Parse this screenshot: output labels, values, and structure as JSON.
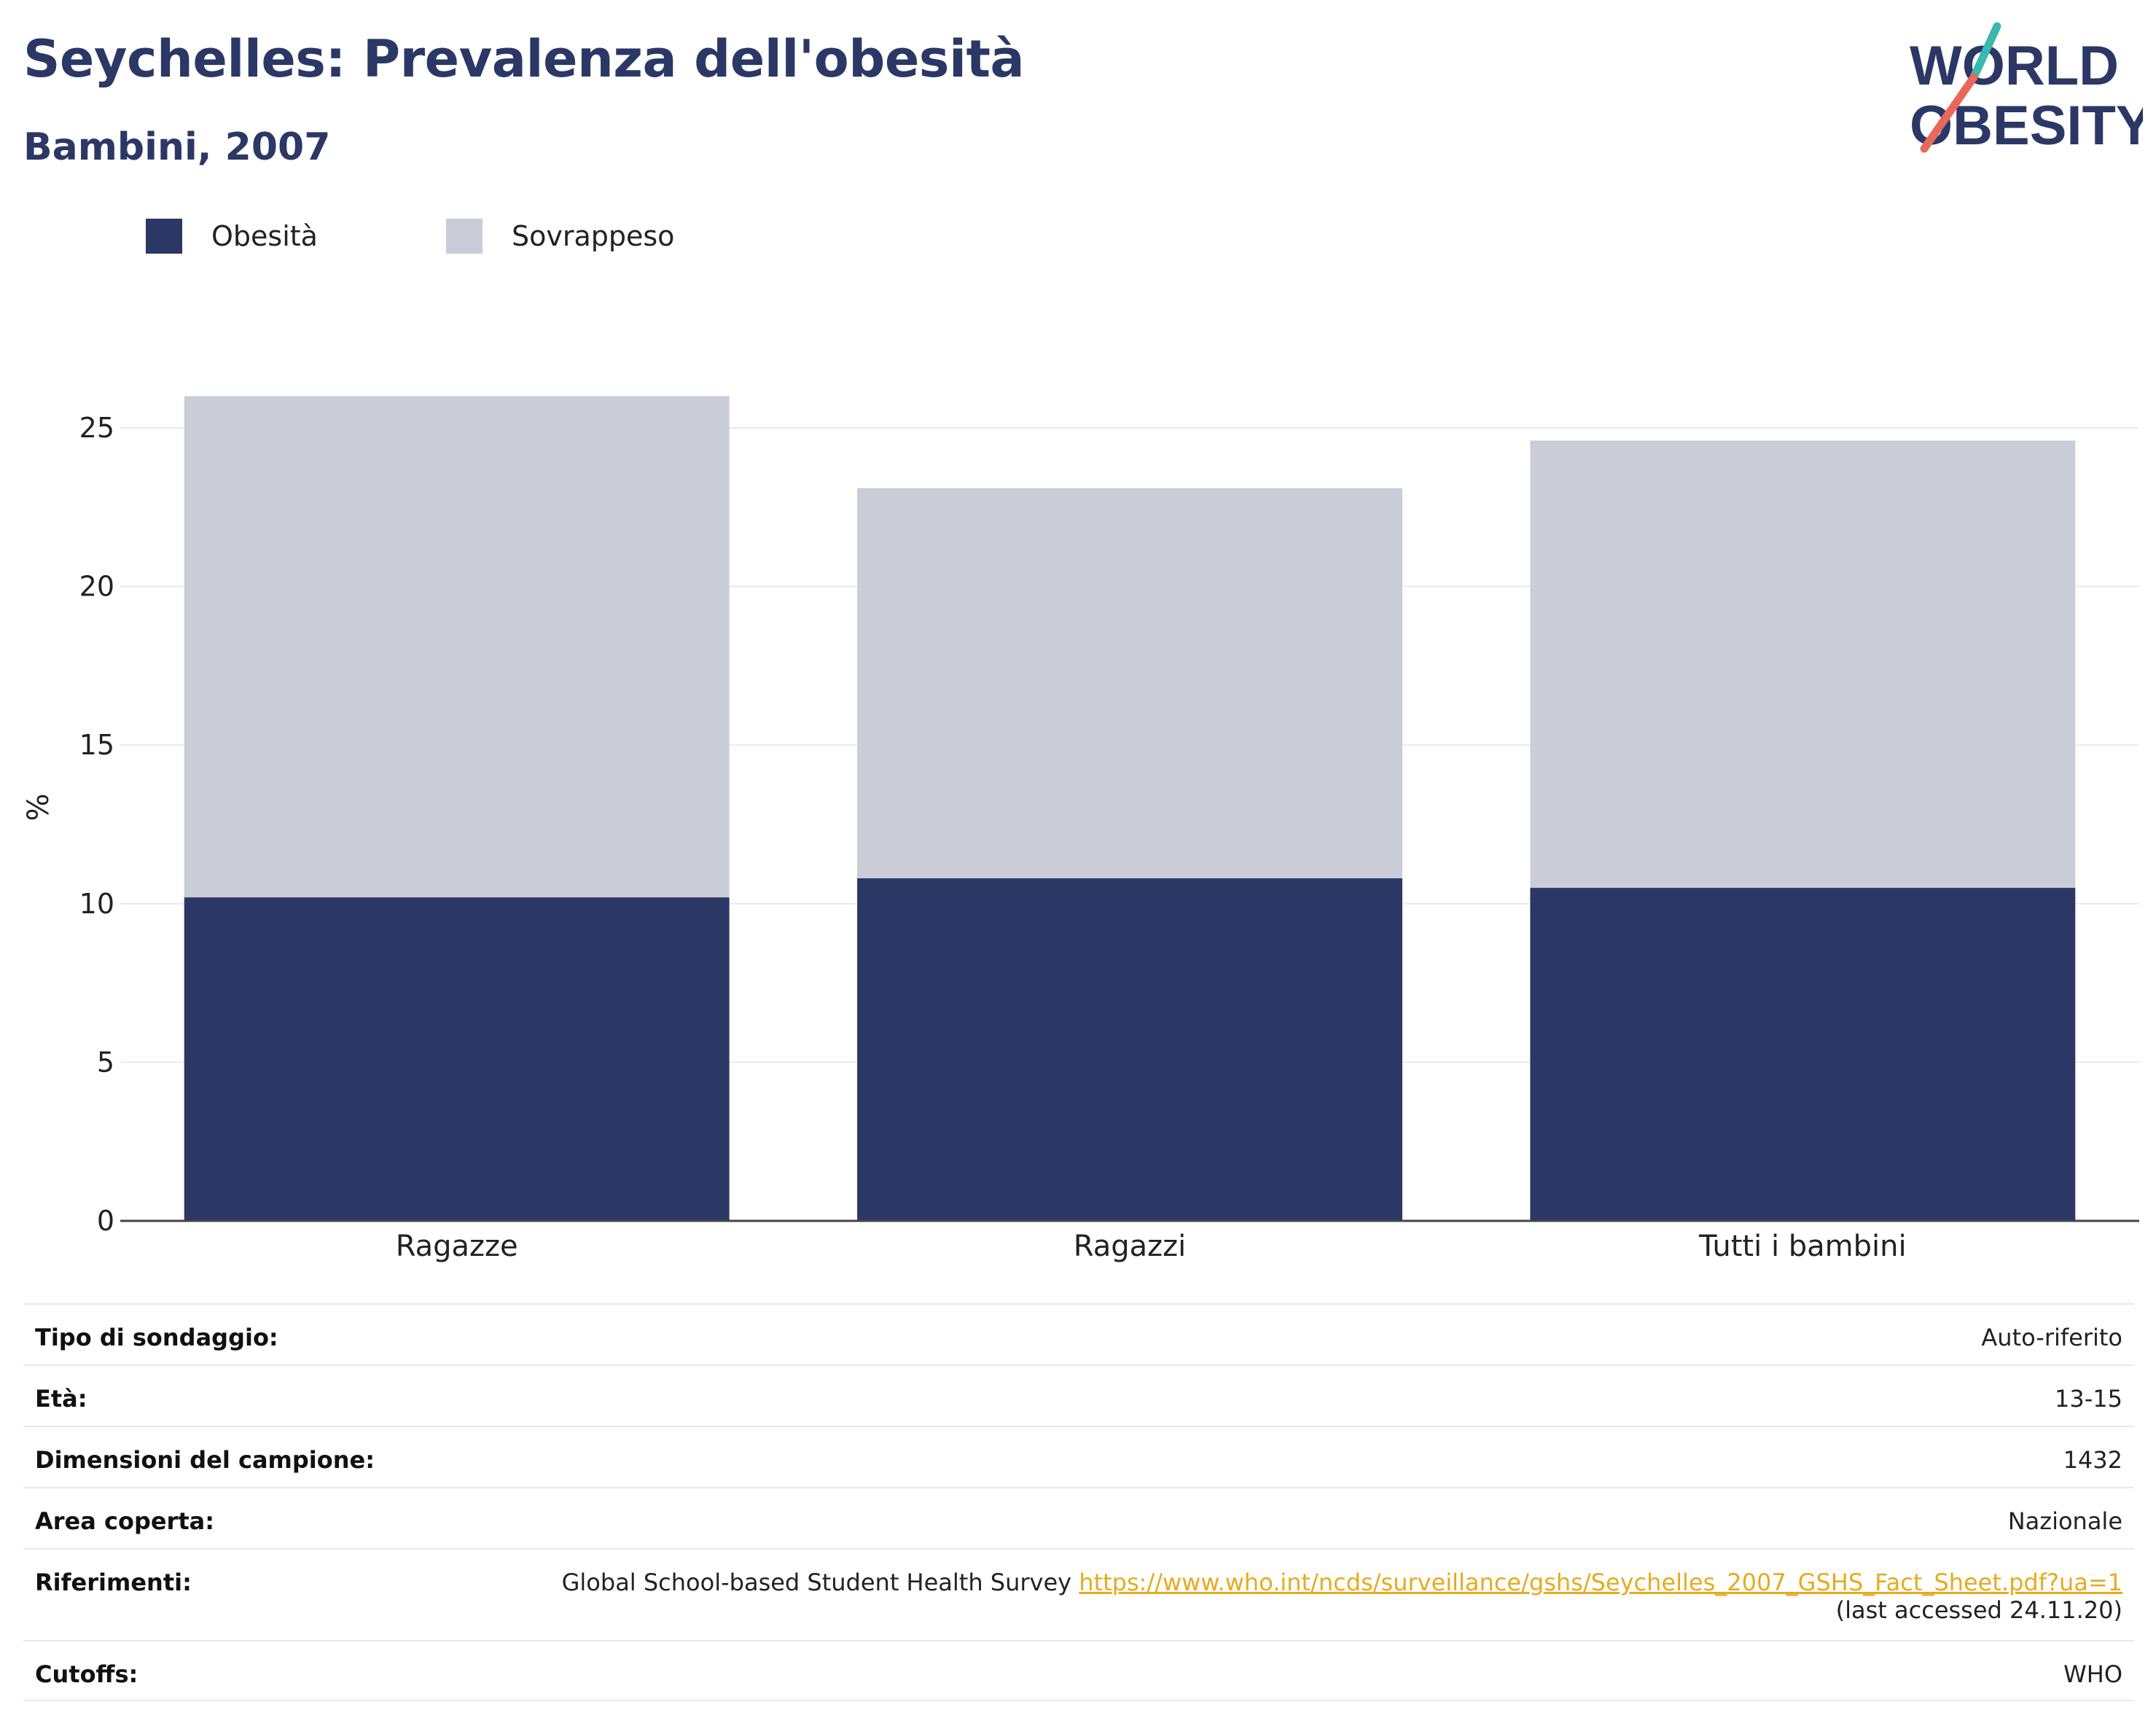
{
  "header": {
    "title": "Seychelles: Prevalenza dell'obesità",
    "subtitle": "Bambini, 2007"
  },
  "logo": {
    "line1": "WORLD",
    "line2": "OBESITY",
    "colors": {
      "text": "#2b3866",
      "accent_top": "#3bb8b0",
      "accent_bottom": "#e8685a"
    }
  },
  "chart_data": {
    "type": "bar",
    "stacked": true,
    "categories": [
      "Ragazze",
      "Ragazzi",
      "Tutti i bambini"
    ],
    "series": [
      {
        "name": "Obesità",
        "values": [
          10.2,
          10.8,
          10.5
        ],
        "color": "#2b3866"
      },
      {
        "name": "Sovrappeso",
        "values": [
          15.8,
          12.3,
          14.1
        ],
        "color": "#cacdd8"
      }
    ],
    "ylabel": "%",
    "ylim": [
      0,
      27
    ],
    "yticks": [
      0,
      5,
      10,
      15,
      20,
      25
    ],
    "grid": true,
    "legend_position": "top-left"
  },
  "info": {
    "rows": [
      {
        "label": "Tipo di sondaggio:",
        "value": "Auto-riferito"
      },
      {
        "label": "Età:",
        "value": "13-15"
      },
      {
        "label": "Dimensioni del campione:",
        "value": "1432"
      },
      {
        "label": "Area coperta:",
        "value": "Nazionale"
      }
    ],
    "references": {
      "label": "Riferimenti:",
      "text": "Global School-based Student Health Survey",
      "link": "https://www.who.int/ncds/surveillance/gshs/Seychelles_2007_GSHS_Fact_Sheet.pdf?ua=1",
      "accessed": "(last accessed 24.11.20)"
    },
    "cutoffs": {
      "label": "Cutoffs:",
      "value": "WHO"
    }
  }
}
